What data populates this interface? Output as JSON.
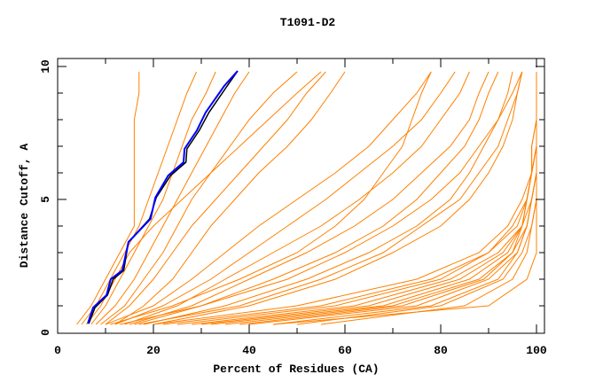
{
  "chart_data": {
    "type": "line",
    "title": "T1091-D2",
    "xlabel": "Percent of Residues (CA)",
    "ylabel": "Distance Cutoff, A",
    "xlim": [
      0,
      101.7
    ],
    "ylim": [
      0,
      10.3
    ],
    "xticks": [
      0,
      20,
      40,
      60,
      80,
      100
    ],
    "yticks": [
      0,
      5,
      10
    ],
    "xtick_labels": [
      "0",
      "20",
      "40",
      "60",
      "80",
      "100"
    ],
    "ytick_labels": [
      "0",
      "5",
      "10"
    ],
    "grid": false,
    "colors": {
      "models": "#ff8000",
      "highlight": "#0000ff",
      "reference": "#000000"
    },
    "y_levels": [
      0.3,
      1,
      2,
      3,
      4,
      5,
      6,
      7,
      8,
      9,
      9.8
    ],
    "series": [
      {
        "name": "model",
        "x": [
          5,
          8,
          11,
          14,
          17,
          19,
          21,
          23,
          25,
          27,
          29
        ]
      },
      {
        "name": "model",
        "x": [
          4,
          7,
          10,
          13,
          16,
          16,
          16,
          16,
          16,
          17,
          17
        ]
      },
      {
        "name": "model",
        "x": [
          7,
          10,
          13,
          16,
          19,
          22,
          24,
          26,
          28,
          31,
          33
        ]
      },
      {
        "name": "model",
        "x": [
          8,
          12,
          16,
          19,
          22,
          25,
          28,
          31,
          34,
          37,
          40
        ]
      },
      {
        "name": "model",
        "x": [
          6,
          9,
          12,
          15,
          20,
          26,
          32,
          38,
          44,
          50,
          55
        ]
      },
      {
        "name": "model",
        "x": [
          9,
          14,
          18,
          22,
          25,
          28,
          32,
          36,
          40,
          45,
          50
        ]
      },
      {
        "name": "model",
        "x": [
          10,
          15,
          20,
          24,
          28,
          33,
          38,
          43,
          48,
          52,
          56
        ]
      },
      {
        "name": "model",
        "x": [
          12,
          18,
          24,
          28,
          32,
          37,
          42,
          48,
          53,
          57,
          60
        ]
      },
      {
        "name": "model",
        "x": [
          10,
          20,
          28,
          35,
          42,
          50,
          58,
          65,
          70,
          75,
          78
        ]
      },
      {
        "name": "model",
        "x": [
          12,
          22,
          32,
          40,
          48,
          56,
          63,
          70,
          76,
          80,
          83
        ]
      },
      {
        "name": "model",
        "x": [
          14,
          25,
          35,
          45,
          55,
          63,
          70,
          76,
          80,
          84,
          86
        ]
      },
      {
        "name": "model",
        "x": [
          15,
          28,
          40,
          52,
          62,
          70,
          76,
          82,
          86,
          88,
          90
        ]
      },
      {
        "name": "model",
        "x": [
          16,
          30,
          45,
          58,
          68,
          75,
          80,
          85,
          88,
          90,
          92
        ]
      },
      {
        "name": "model",
        "x": [
          18,
          35,
          52,
          65,
          75,
          82,
          86,
          89,
          92,
          94,
          95
        ]
      },
      {
        "name": "model",
        "x": [
          20,
          40,
          58,
          70,
          80,
          86,
          90,
          93,
          95,
          96,
          97
        ]
      },
      {
        "name": "model",
        "x": [
          11,
          24,
          38,
          50,
          58,
          64,
          68,
          72,
          74,
          76,
          78
        ]
      },
      {
        "name": "model",
        "x": [
          13,
          30,
          48,
          60,
          70,
          78,
          84,
          88,
          92,
          95,
          97
        ]
      },
      {
        "name": "model",
        "x": [
          17,
          38,
          55,
          68,
          76,
          84,
          88,
          92,
          94,
          96,
          97
        ]
      },
      {
        "name": "model",
        "x": [
          20,
          50,
          75,
          88,
          94,
          97,
          99,
          100,
          100,
          100,
          100
        ]
      },
      {
        "name": "model",
        "x": [
          22,
          55,
          78,
          90,
          95,
          98,
          99,
          100,
          100,
          100,
          100
        ]
      },
      {
        "name": "model",
        "x": [
          25,
          58,
          80,
          90,
          96,
          98,
          99,
          99,
          100,
          100,
          100
        ]
      },
      {
        "name": "model",
        "x": [
          28,
          62,
          82,
          92,
          97,
          98,
          99,
          100,
          100,
          100,
          100
        ]
      },
      {
        "name": "model",
        "x": [
          30,
          65,
          84,
          93,
          97,
          99,
          100,
          100,
          100,
          100,
          100
        ]
      },
      {
        "name": "model",
        "x": [
          32,
          68,
          86,
          94,
          97,
          98,
          99,
          99,
          100,
          100,
          100
        ]
      },
      {
        "name": "model",
        "x": [
          35,
          70,
          88,
          95,
          98,
          99,
          100,
          100,
          100,
          100,
          100
        ]
      },
      {
        "name": "model",
        "x": [
          38,
          72,
          89,
          95,
          97,
          98,
          99,
          100,
          100,
          100,
          100
        ]
      },
      {
        "name": "model",
        "x": [
          40,
          75,
          90,
          96,
          98,
          99,
          100,
          100,
          100,
          100,
          100
        ]
      },
      {
        "name": "model",
        "x": [
          45,
          78,
          92,
          96,
          98,
          99,
          100,
          100,
          100,
          100,
          100
        ]
      },
      {
        "name": "model",
        "x": [
          50,
          80,
          93,
          97,
          99,
          100,
          100,
          100,
          100,
          100,
          100
        ]
      },
      {
        "name": "model",
        "x": [
          55,
          85,
          95,
          98,
          99,
          100,
          100,
          100,
          100,
          100,
          100
        ]
      },
      {
        "name": "model",
        "x": [
          45,
          90,
          98,
          100,
          100,
          100,
          100,
          100,
          100,
          100,
          100
        ]
      }
    ],
    "highlight": {
      "x": [
        6.3,
        7.4,
        10.2,
        11.1,
        13.5,
        14.8,
        19.4,
        20.4,
        23.1,
        26.3,
        26.5,
        29.1,
        30.9,
        34.8,
        37.6
      ],
      "y": [
        0.33,
        0.93,
        1.4,
        2.0,
        2.33,
        3.4,
        4.27,
        5.07,
        5.9,
        6.4,
        6.9,
        7.6,
        8.27,
        9.27,
        9.83
      ]
    },
    "reference": {
      "x": [
        6.5,
        7.8,
        10.4,
        11.6,
        13.8,
        14.8,
        19.2,
        20.6,
        23.6,
        26.8,
        27.0,
        29.6,
        31.6,
        35.4,
        37.6
      ],
      "y": [
        0.33,
        0.93,
        1.4,
        2.0,
        2.33,
        3.4,
        4.27,
        5.07,
        5.9,
        6.4,
        6.9,
        7.6,
        8.27,
        9.27,
        9.83
      ]
    }
  }
}
